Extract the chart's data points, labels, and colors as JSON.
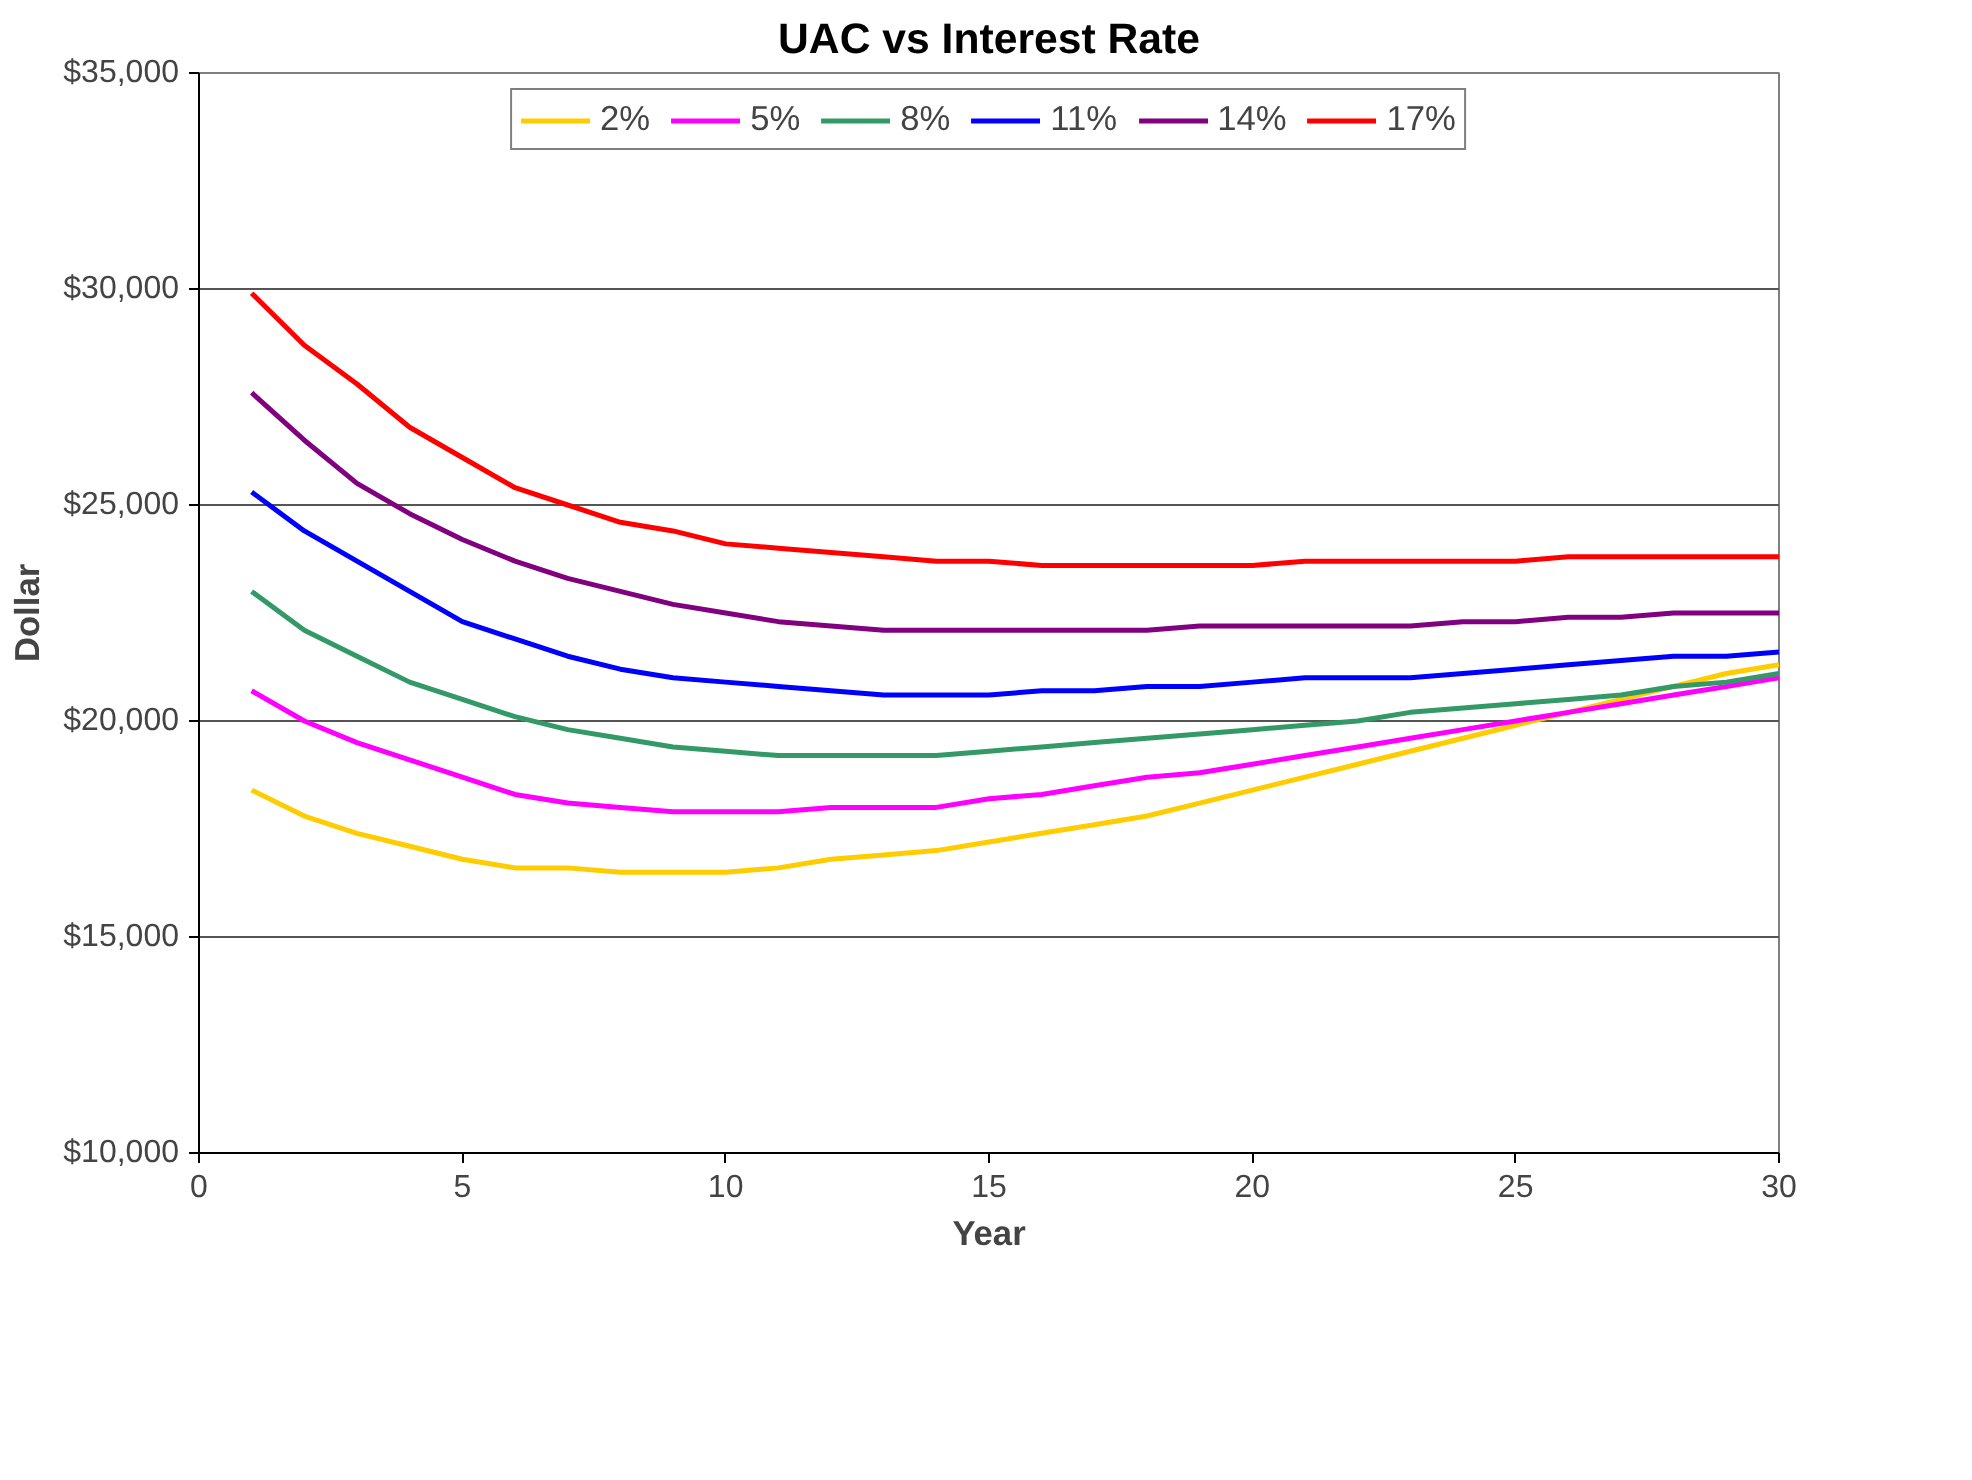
{
  "chart_data": {
    "type": "line",
    "title": "UAC vs Interest Rate",
    "xlabel": "Year",
    "ylabel": "Dollar",
    "x": [
      1,
      2,
      3,
      4,
      5,
      6,
      7,
      8,
      9,
      10,
      11,
      12,
      13,
      14,
      15,
      16,
      17,
      18,
      19,
      20,
      21,
      22,
      23,
      24,
      25,
      26,
      27,
      28,
      29,
      30
    ],
    "xlim": [
      0,
      30
    ],
    "xticks": [
      0,
      5,
      10,
      15,
      20,
      25,
      30
    ],
    "ylim": [
      10000,
      35000
    ],
    "yticks": [
      {
        "value": 10000,
        "label": "$10,000"
      },
      {
        "value": 15000,
        "label": "$15,000"
      },
      {
        "value": 20000,
        "label": "$20,000"
      },
      {
        "value": 25000,
        "label": "$25,000"
      },
      {
        "value": 30000,
        "label": "$30,000"
      },
      {
        "value": 35000,
        "label": "$35,000"
      }
    ],
    "grid": "y",
    "legend": "top",
    "marker": "none",
    "line_style": "solid",
    "series": [
      {
        "name": "2%",
        "color": "#ffcc00",
        "values": [
          18400,
          17800,
          17400,
          17100,
          16800,
          16600,
          16600,
          16500,
          16500,
          16500,
          16600,
          16800,
          16900,
          17000,
          17200,
          17400,
          17600,
          17800,
          18100,
          18400,
          18700,
          19000,
          19300,
          19600,
          19900,
          20200,
          20500,
          20800,
          21100,
          21300
        ]
      },
      {
        "name": "5%",
        "color": "#ff00ff",
        "values": [
          20700,
          20000,
          19500,
          19100,
          18700,
          18300,
          18100,
          18000,
          17900,
          17900,
          17900,
          18000,
          18000,
          18000,
          18200,
          18300,
          18500,
          18700,
          18800,
          19000,
          19200,
          19400,
          19600,
          19800,
          20000,
          20200,
          20400,
          20600,
          20800,
          21000
        ]
      },
      {
        "name": "8%",
        "color": "#339966",
        "values": [
          23000,
          22100,
          21500,
          20900,
          20500,
          20100,
          19800,
          19600,
          19400,
          19300,
          19200,
          19200,
          19200,
          19200,
          19300,
          19400,
          19500,
          19600,
          19700,
          19800,
          19900,
          20000,
          20200,
          20300,
          20400,
          20500,
          20600,
          20800,
          20900,
          21100
        ]
      },
      {
        "name": "11%",
        "color": "#0000ff",
        "values": [
          25300,
          24400,
          23700,
          23000,
          22300,
          21900,
          21500,
          21200,
          21000,
          20900,
          20800,
          20700,
          20600,
          20600,
          20600,
          20700,
          20700,
          20800,
          20800,
          20900,
          21000,
          21000,
          21000,
          21100,
          21200,
          21300,
          21400,
          21500,
          21500,
          21600
        ]
      },
      {
        "name": "14%",
        "color": "#800080",
        "values": [
          27600,
          26500,
          25500,
          24800,
          24200,
          23700,
          23300,
          23000,
          22700,
          22500,
          22300,
          22200,
          22100,
          22100,
          22100,
          22100,
          22100,
          22100,
          22200,
          22200,
          22200,
          22200,
          22200,
          22300,
          22300,
          22400,
          22400,
          22500,
          22500,
          22500
        ]
      },
      {
        "name": "17%",
        "color": "#ff0000",
        "values": [
          29900,
          28700,
          27800,
          26800,
          26100,
          25400,
          25000,
          24600,
          24400,
          24100,
          24000,
          23900,
          23800,
          23700,
          23700,
          23600,
          23600,
          23600,
          23600,
          23600,
          23700,
          23700,
          23700,
          23700,
          23700,
          23800,
          23800,
          23800,
          23800,
          23800
        ]
      }
    ]
  }
}
